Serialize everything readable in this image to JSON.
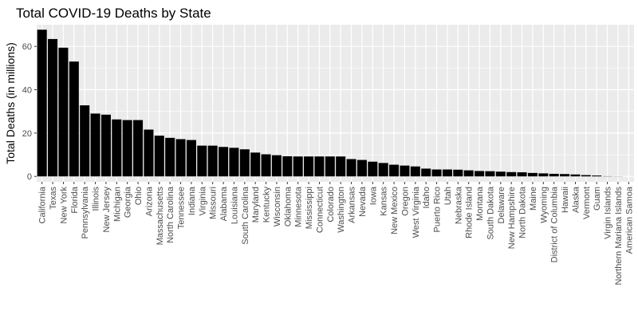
{
  "chart_data": {
    "type": "bar",
    "title": "Total COVID-19 Deaths by State",
    "xlabel": "",
    "ylabel": "Total Deaths (in millions)",
    "ylim": [
      -2.5,
      70
    ],
    "yticks": [
      0,
      20,
      40,
      60
    ],
    "grid": true,
    "legend": "none",
    "colors": {
      "panel": "#ebebeb",
      "grid": "#ffffff",
      "bar": "#000000",
      "tick_text": "#4d4d4d"
    },
    "categories": [
      "California",
      "Texas",
      "New York",
      "Florida",
      "Pennsylvania",
      "Illinois",
      "New Jersey",
      "Michigan",
      "Georgia",
      "Ohio",
      "Arizona",
      "Massachusetts",
      "North Carolina",
      "Tennessee",
      "Indiana",
      "Virginia",
      "Missouri",
      "Alabama",
      "Louisiana",
      "South Carolina",
      "Maryland",
      "Kentucky",
      "Wisconsin",
      "Oklahoma",
      "Minnesota",
      "Mississippi",
      "Connecticut",
      "Colorado",
      "Washington",
      "Arkansas",
      "Nevada",
      "Iowa",
      "Kansas",
      "New Mexico",
      "Oregon",
      "West Virginia",
      "Idaho",
      "Puerto Rico",
      "Utah",
      "Nebraska",
      "Rhode Island",
      "Montana",
      "South Dakota",
      "Delaware",
      "New Hampshire",
      "North Dakota",
      "Maine",
      "Wyoming",
      "District of Columbia",
      "Hawaii",
      "Alaska",
      "Vermont",
      "Guam",
      "Virgin Islands",
      "Northern Mariana Islands",
      "American Samoa"
    ],
    "values": [
      67.7,
      63.4,
      59.4,
      53.0,
      32.8,
      29.0,
      28.5,
      26.3,
      26.0,
      26.0,
      21.6,
      18.8,
      17.8,
      17.2,
      16.8,
      14.2,
      14.2,
      13.6,
      13.2,
      12.5,
      11.0,
      10.2,
      9.8,
      9.3,
      9.2,
      9.2,
      9.2,
      9.2,
      9.2,
      8.0,
      7.6,
      6.8,
      6.2,
      5.4,
      5.0,
      4.6,
      3.6,
      3.2,
      3.2,
      3.1,
      2.8,
      2.5,
      2.4,
      2.2,
      2.0,
      1.9,
      1.6,
      1.4,
      1.2,
      1.1,
      0.9,
      0.6,
      0.4,
      0.1,
      0.05,
      0.0
    ]
  }
}
